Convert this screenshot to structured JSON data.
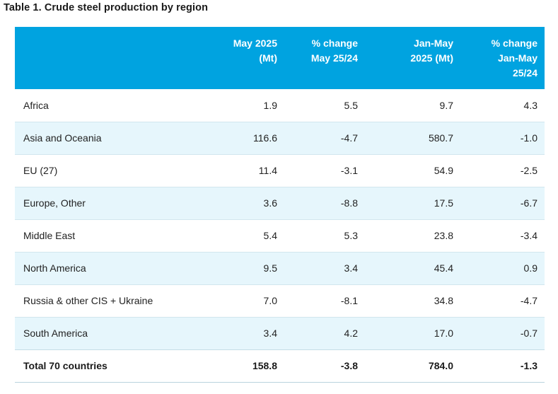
{
  "title": "Table 1. Crude steel production by region",
  "table": {
    "headers": [
      "",
      "May 2025\n(Mt)",
      "% change\nMay 25/24",
      "Jan-May\n2025 (Mt)",
      "% change\nJan-May\n25/24"
    ],
    "rows": [
      {
        "region": "Africa",
        "may_2025": "1.9",
        "pct_may": "5.5",
        "jan_may": "9.7",
        "pct_jan_may": "4.3"
      },
      {
        "region": "Asia and Oceania",
        "may_2025": "116.6",
        "pct_may": "-4.7",
        "jan_may": "580.7",
        "pct_jan_may": "-1.0"
      },
      {
        "region": "EU (27)",
        "may_2025": "11.4",
        "pct_may": "-3.1",
        "jan_may": "54.9",
        "pct_jan_may": "-2.5"
      },
      {
        "region": "Europe, Other",
        "may_2025": "3.6",
        "pct_may": "-8.8",
        "jan_may": "17.5",
        "pct_jan_may": "-6.7"
      },
      {
        "region": "Middle East",
        "may_2025": "5.4",
        "pct_may": "5.3",
        "jan_may": "23.8",
        "pct_jan_may": "-3.4"
      },
      {
        "region": "North America",
        "may_2025": "9.5",
        "pct_may": "3.4",
        "jan_may": "45.4",
        "pct_jan_may": "0.9"
      },
      {
        "region": "Russia & other CIS + Ukraine",
        "may_2025": "7.0",
        "pct_may": "-8.1",
        "jan_may": "34.8",
        "pct_jan_may": "-4.7"
      },
      {
        "region": "South America",
        "may_2025": "3.4",
        "pct_may": "4.2",
        "jan_may": "17.0",
        "pct_jan_may": "-0.7"
      }
    ],
    "total": {
      "region": "Total 70 countries",
      "may_2025": "158.8",
      "pct_may": "-3.8",
      "jan_may": "784.0",
      "pct_jan_may": "-1.3"
    }
  },
  "colors": {
    "header_bg": "#00a3e0",
    "alt_row_bg": "#e6f6fc"
  }
}
